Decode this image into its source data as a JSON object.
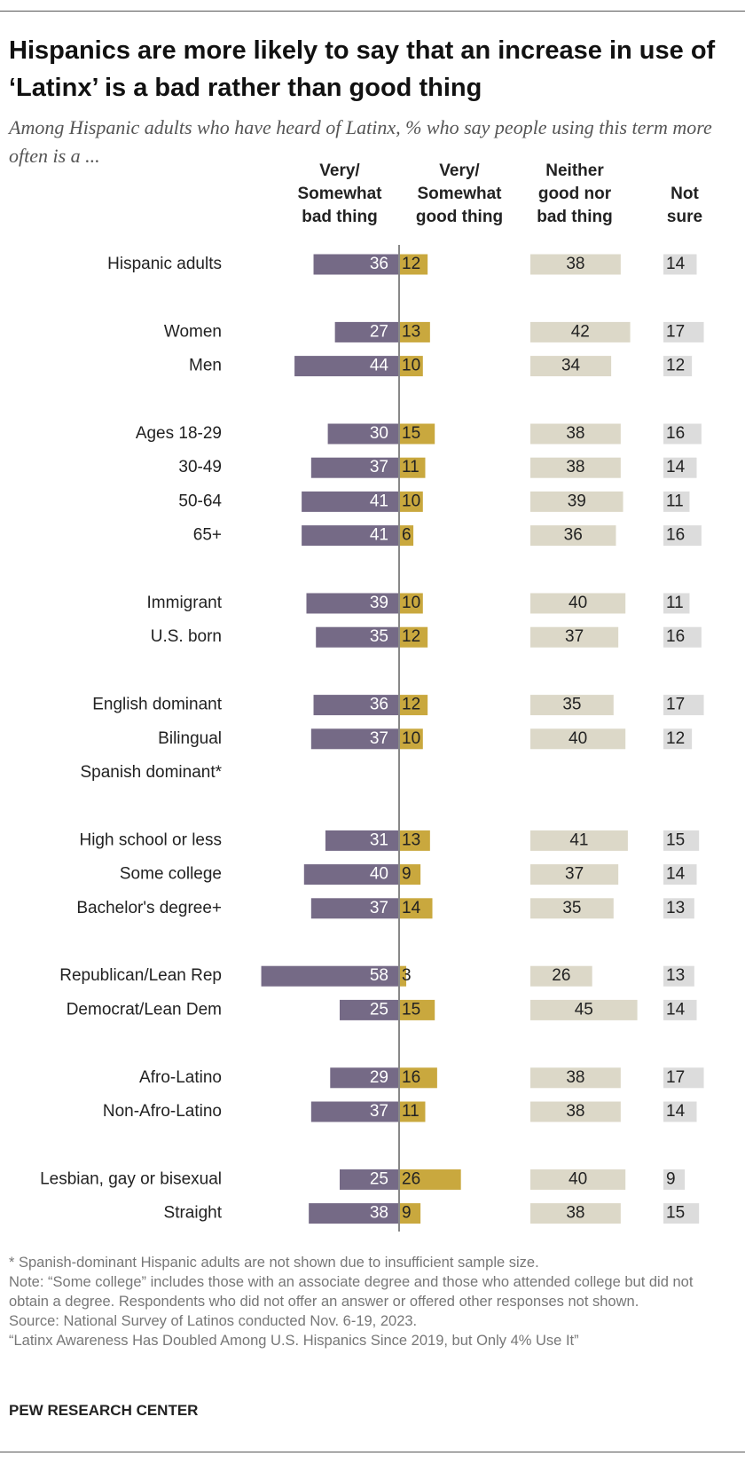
{
  "chart_data": {
    "type": "diverging-bar",
    "title": "Hispanics are more likely to say that an increase in use of ‘Latinx’ is a bad rather than good thing",
    "subtitle": "Among Hispanic adults who have heard of Latinx, % who say people using this term more often is a ...",
    "categories": [
      "Hispanic adults",
      "Women",
      "Men",
      "Ages 18-29",
      "30-49",
      "50-64",
      "65+",
      "Immigrant",
      "U.S. born",
      "English dominant",
      "Bilingual",
      "Spanish dominant*",
      "High school or less",
      "Some college",
      "Bachelor's degree+",
      "Republican/Lean Rep",
      "Democrat/Lean Dem",
      "Afro-Latino",
      "Non-Afro-Latino",
      "Lesbian, gay or bisexual",
      "Straight"
    ],
    "series": [
      {
        "name": "Very/ Somewhat bad thing",
        "color": "#756a86",
        "values": [
          36,
          27,
          44,
          30,
          37,
          41,
          41,
          39,
          35,
          36,
          37,
          null,
          31,
          40,
          37,
          58,
          25,
          29,
          37,
          25,
          38
        ]
      },
      {
        "name": "Very/ Somewhat good thing",
        "color": "#c9a83e",
        "values": [
          12,
          13,
          10,
          15,
          11,
          10,
          6,
          10,
          12,
          12,
          10,
          null,
          13,
          9,
          14,
          3,
          15,
          16,
          11,
          26,
          9
        ]
      },
      {
        "name": "Neither good nor bad thing",
        "color": "#dcd8c8",
        "values": [
          38,
          42,
          34,
          38,
          38,
          39,
          36,
          40,
          37,
          35,
          40,
          null,
          41,
          37,
          35,
          26,
          45,
          38,
          38,
          40,
          38
        ]
      },
      {
        "name": "Not sure",
        "color": "#dcdcdc",
        "values": [
          14,
          17,
          12,
          16,
          14,
          11,
          16,
          11,
          16,
          17,
          12,
          null,
          15,
          14,
          13,
          13,
          14,
          17,
          14,
          9,
          15
        ]
      }
    ],
    "notes": [
      "* Spanish-dominant Hispanic adults are not shown due to insufficient sample size.",
      "Note: “Some college” includes those with an associate degree and those who attended college but did not obtain a degree. Respondents who did not offer an answer or offered other responses not shown.",
      "Source: National Survey of Latinos conducted Nov. 6-19, 2023.",
      "“Latinx Awareness Has Doubled Among U.S. Hispanics Since 2019, but Only 4% Use It”"
    ],
    "footer": "PEW RESEARCH CENTER"
  }
}
